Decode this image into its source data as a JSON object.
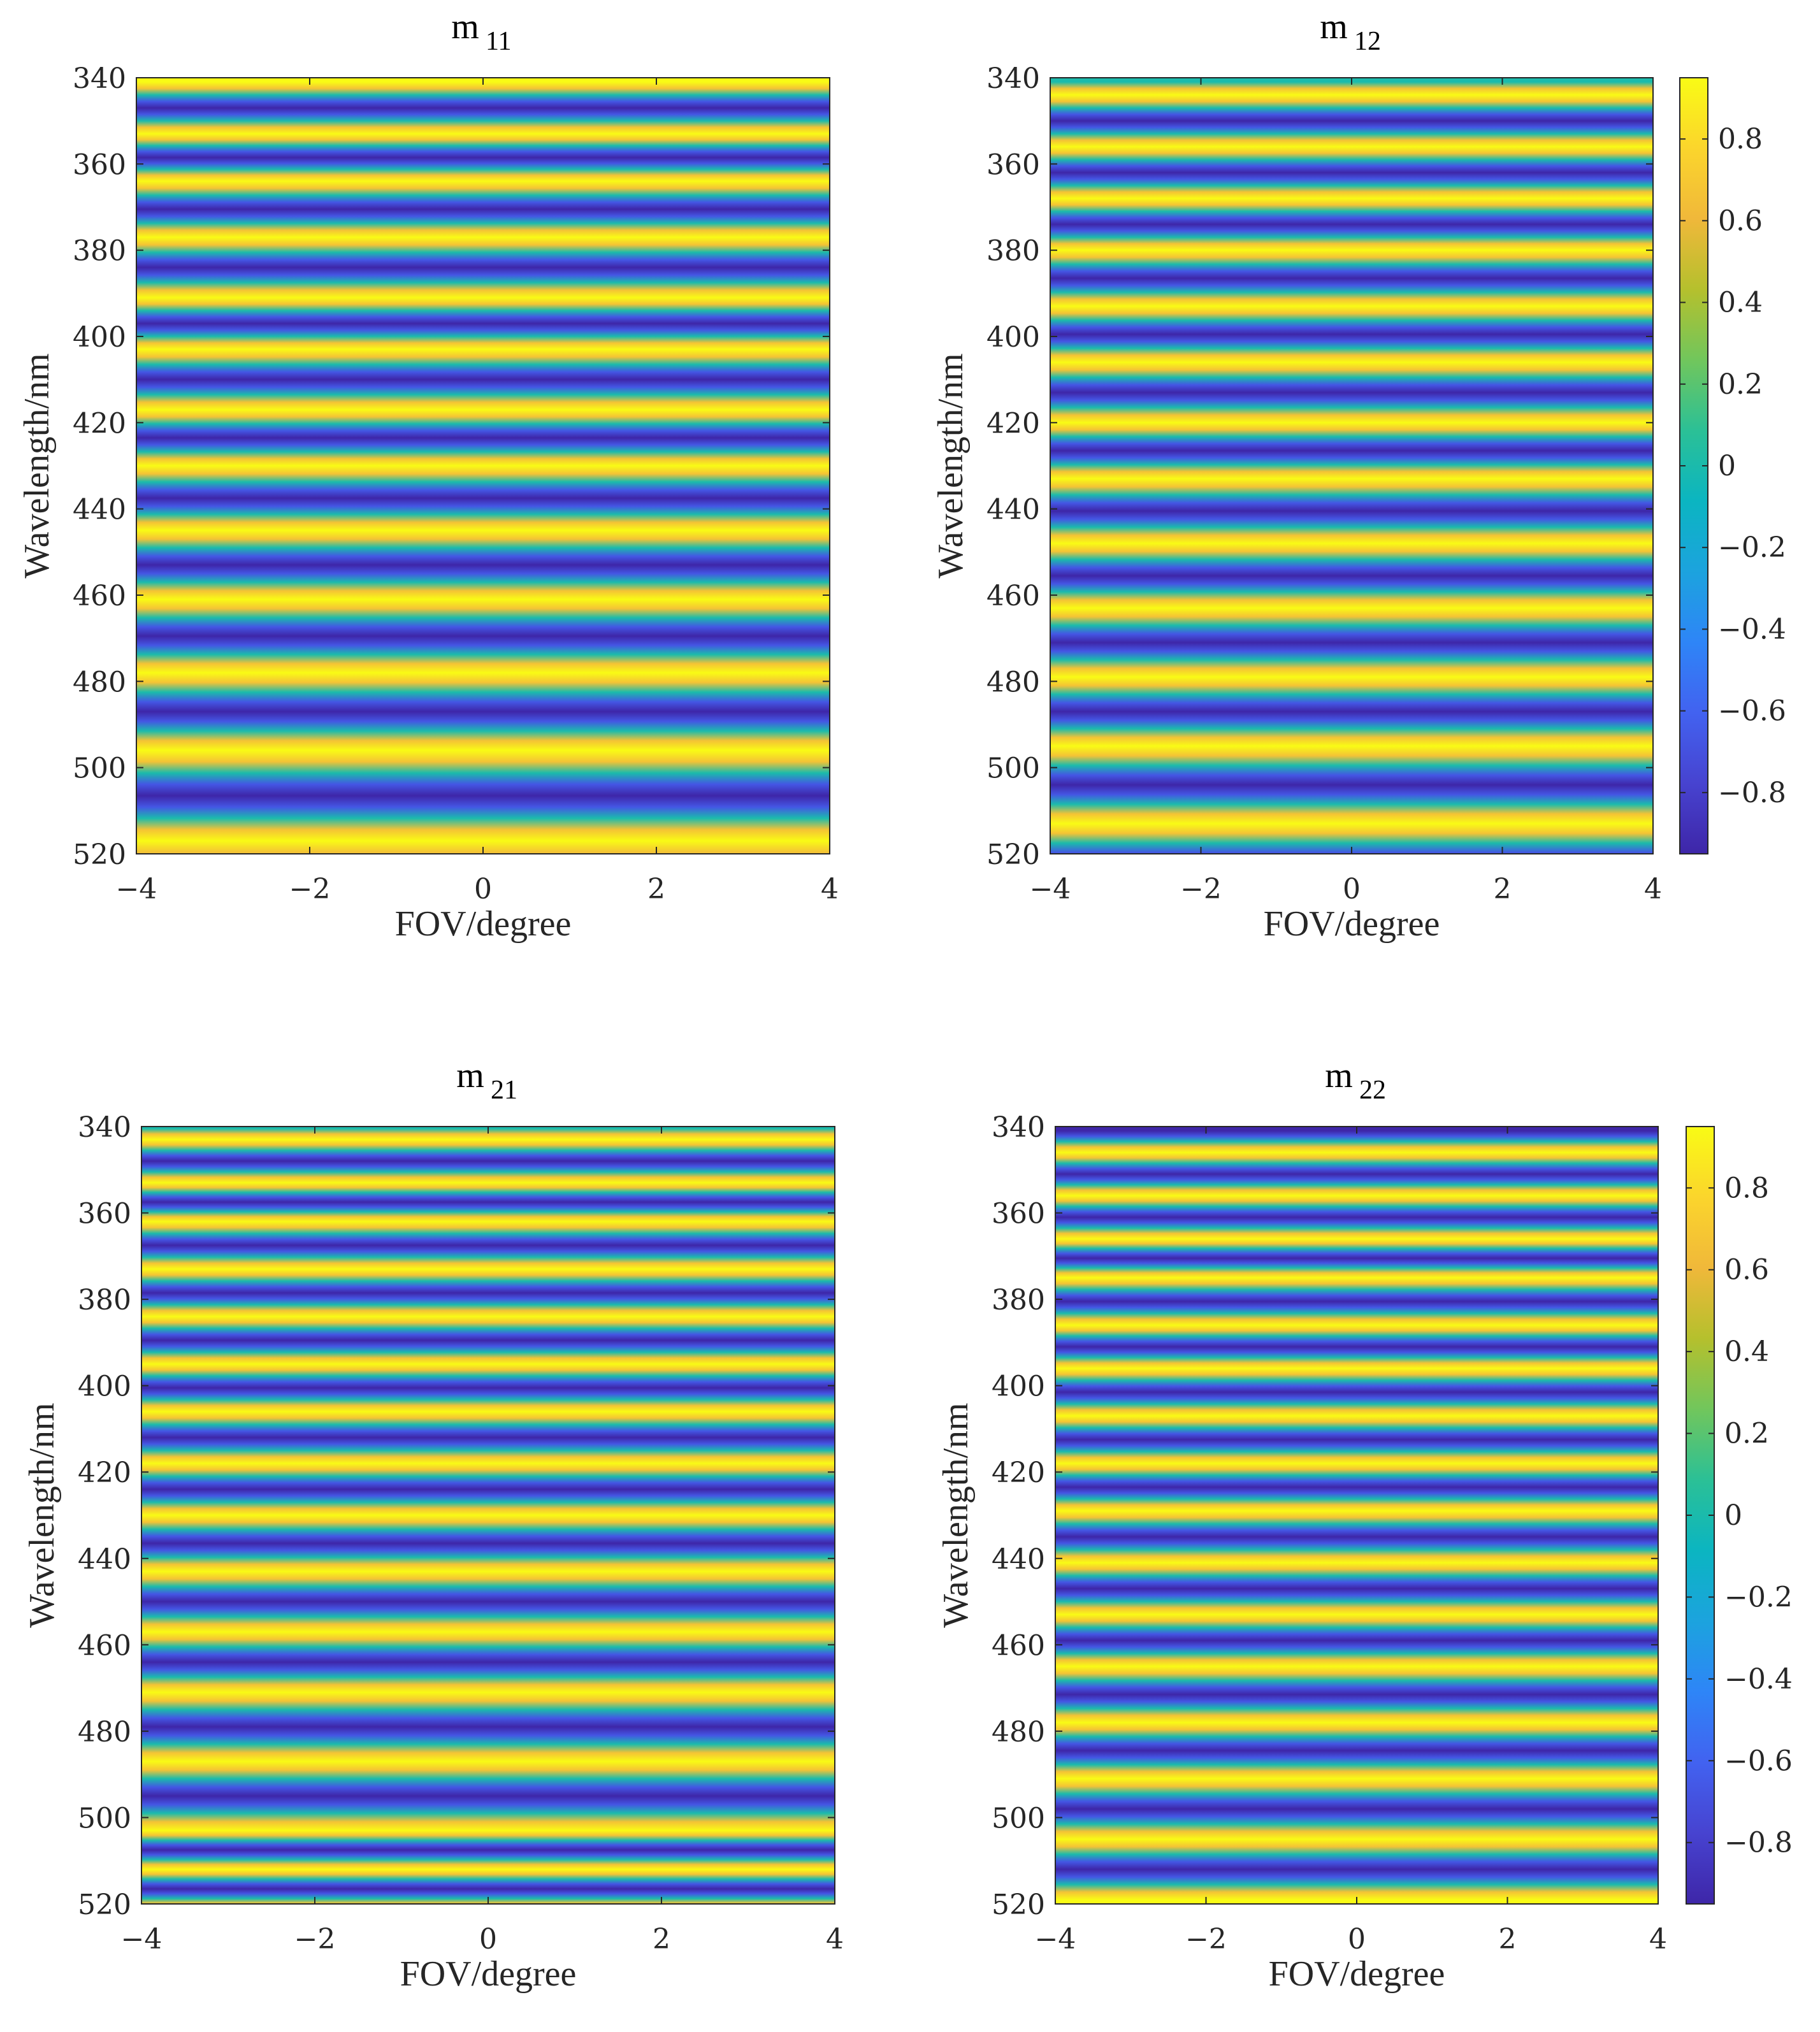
{
  "colormap": [
    "#3e26a8",
    "#4743d0",
    "#4262f0",
    "#2e85f7",
    "#1ca3de",
    "#0bb5c1",
    "#2bc096",
    "#71c65c",
    "#b5c02d",
    "#f0b83a",
    "#fbd52c",
    "#f9fb15"
  ],
  "chart_data": [
    {
      "type": "heatmap",
      "id": "m11",
      "title": {
        "base": "m",
        "sub": "11"
      },
      "xlabel": "FOV/degree",
      "ylabel": "Wavelength/nm",
      "xlim": [
        -4,
        4
      ],
      "ylim": [
        340,
        520
      ],
      "xticks": [
        -4,
        -2,
        0,
        2,
        4
      ],
      "xtick_labels": [
        "−4",
        "−2",
        "0",
        "2",
        "4"
      ],
      "yticks": [
        340,
        360,
        380,
        400,
        420,
        440,
        460,
        480,
        500,
        520
      ],
      "ytick_labels": [
        "340",
        "360",
        "380",
        "400",
        "420",
        "440",
        "460",
        "480",
        "500",
        "520"
      ],
      "pattern": "horizontal cosine fringes",
      "fringe_peaks_nm": [
        341,
        353,
        364,
        377,
        391,
        403,
        417,
        430,
        445,
        461,
        478,
        496,
        517
      ],
      "value_range": [
        -0.95,
        0.95
      ],
      "colorbar": false
    },
    {
      "type": "heatmap",
      "id": "m12",
      "title": {
        "base": "m",
        "sub": "12"
      },
      "xlabel": "FOV/degree",
      "ylabel": "Wavelength/nm",
      "xlim": [
        -4,
        4
      ],
      "ylim": [
        340,
        520
      ],
      "xticks": [
        -4,
        -2,
        0,
        2,
        4
      ],
      "xtick_labels": [
        "−4",
        "−2",
        "0",
        "2",
        "4"
      ],
      "yticks": [
        340,
        360,
        380,
        400,
        420,
        440,
        460,
        480,
        500,
        520
      ],
      "ytick_labels": [
        "340",
        "360",
        "380",
        "400",
        "420",
        "440",
        "460",
        "480",
        "500",
        "520"
      ],
      "pattern": "horizontal cosine fringes",
      "fringe_peaks_nm": [
        344,
        356,
        368,
        380,
        393,
        406,
        420,
        433,
        448,
        463,
        479,
        495,
        513
      ],
      "value_range": [
        -0.95,
        0.95
      ],
      "colorbar": true,
      "colorbar_ticks": [
        0.8,
        0.6,
        0.4,
        0.2,
        0,
        -0.2,
        -0.4,
        -0.6,
        -0.8
      ],
      "colorbar_tick_labels": [
        "0.8",
        "0.6",
        "0.4",
        "0.2",
        "0",
        "−0.2",
        "−0.4",
        "−0.6",
        "−0.8"
      ],
      "colorbar_range": [
        -0.95,
        0.95
      ]
    },
    {
      "type": "heatmap",
      "id": "m21",
      "title": {
        "base": "m",
        "sub": "21"
      },
      "xlabel": "FOV/degree",
      "ylabel": "Wavelength/nm",
      "xlim": [
        -4,
        4
      ],
      "ylim": [
        340,
        520
      ],
      "xticks": [
        -4,
        -2,
        0,
        2,
        4
      ],
      "xtick_labels": [
        "−4",
        "−2",
        "0",
        "2",
        "4"
      ],
      "yticks": [
        340,
        360,
        380,
        400,
        420,
        440,
        460,
        480,
        500,
        520
      ],
      "ytick_labels": [
        "340",
        "360",
        "380",
        "400",
        "420",
        "440",
        "460",
        "480",
        "500",
        "520"
      ],
      "pattern": "horizontal cosine fringes",
      "fringe_peaks_nm": [
        343,
        353,
        362,
        373,
        384,
        395,
        406,
        418,
        430,
        443,
        457,
        471,
        487,
        503,
        512
      ],
      "value_range": [
        -0.95,
        0.95
      ],
      "colorbar": false
    },
    {
      "type": "heatmap",
      "id": "m22",
      "title": {
        "base": "m",
        "sub": "22"
      },
      "xlabel": "FOV/degree",
      "ylabel": "Wavelength/nm",
      "xlim": [
        -4,
        4
      ],
      "ylim": [
        340,
        520
      ],
      "xticks": [
        -4,
        -2,
        0,
        2,
        4
      ],
      "xtick_labels": [
        "−4",
        "−2",
        "0",
        "2",
        "4"
      ],
      "yticks": [
        340,
        360,
        380,
        400,
        420,
        440,
        460,
        480,
        500,
        520
      ],
      "ytick_labels": [
        "340",
        "360",
        "380",
        "400",
        "420",
        "440",
        "460",
        "480",
        "500",
        "520"
      ],
      "pattern": "horizontal cosine fringes",
      "fringe_peaks_nm": [
        346,
        356,
        366,
        375,
        386,
        396,
        407,
        418,
        429,
        441,
        453,
        465,
        478,
        491,
        505,
        519
      ],
      "value_range": [
        -0.95,
        0.95
      ],
      "colorbar": true,
      "colorbar_ticks": [
        0.8,
        0.6,
        0.4,
        0.2,
        0,
        -0.2,
        -0.4,
        -0.6,
        -0.8
      ],
      "colorbar_tick_labels": [
        "0.8",
        "0.6",
        "0.4",
        "0.2",
        "0",
        "−0.2",
        "−0.4",
        "−0.6",
        "−0.8"
      ],
      "colorbar_range": [
        -0.95,
        0.95
      ]
    }
  ]
}
